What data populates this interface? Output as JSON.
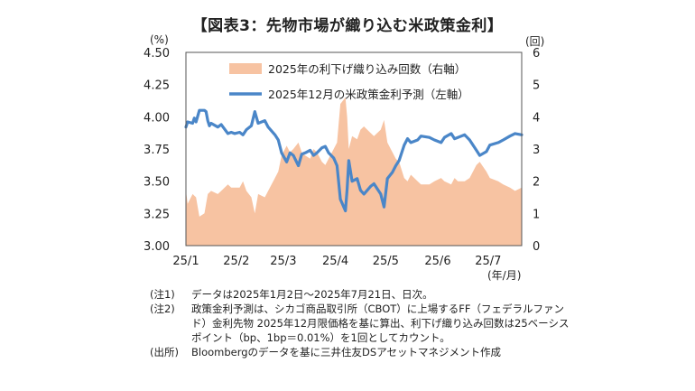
{
  "title": "【図表3：先物市場が織り込む米政策金利】",
  "left_unit": "(%)",
  "right_unit": "(回)",
  "x_unit": "(年/月)",
  "notes": [
    {
      "tag": "(注1)",
      "text": "データは2025年1月2日～2025年7月21日、日次。"
    },
    {
      "tag": "(注2)",
      "text": "政策金利予測は、シカゴ商品取引所（CBOT）に上場するFF（フェデラルファンド）金利先物 2025年12月限価格を基に算出、利下げ織り込み回数は25ベーシスポイント（bp、1bp＝0.01%）を1回としてカウント。"
    },
    {
      "tag": "(出所)",
      "text": "Bloombergのデータを基に三井住友DSアセットマネジメント作成"
    }
  ],
  "chart_data": {
    "type": "line",
    "title": "図表3：先物市場が織り込む米政策金利",
    "x_ticks": [
      "25/1",
      "25/2",
      "25/3",
      "25/4",
      "25/5",
      "25/6",
      "25/7"
    ],
    "x_range": [
      "2025-01-02",
      "2025-07-21"
    ],
    "y_left": {
      "label": "(%)",
      "min": 3.0,
      "max": 4.5,
      "ticks": [
        "3.00",
        "3.25",
        "3.50",
        "3.75",
        "4.00",
        "4.25",
        "4.50"
      ]
    },
    "y_right": {
      "label": "(回)",
      "min": 0,
      "max": 6,
      "ticks": [
        "0",
        "1",
        "2",
        "3",
        "4",
        "5",
        "6"
      ]
    },
    "grid": false,
    "legend_position": "top-center",
    "series": [
      {
        "name": "2025年の利下げ織り込み回数（右軸）",
        "type": "area",
        "axis": "right",
        "color": "#f7c3a2",
        "points": [
          [
            "2025-01-02",
            1.7
          ],
          [
            "2025-01-03",
            1.3
          ],
          [
            "2025-01-06",
            1.6
          ],
          [
            "2025-01-08",
            1.5
          ],
          [
            "2025-01-10",
            0.9
          ],
          [
            "2025-01-13",
            1.0
          ],
          [
            "2025-01-15",
            1.6
          ],
          [
            "2025-01-17",
            1.7
          ],
          [
            "2025-01-21",
            1.6
          ],
          [
            "2025-01-23",
            1.7
          ],
          [
            "2025-01-27",
            1.9
          ],
          [
            "2025-01-29",
            1.8
          ],
          [
            "2025-01-31",
            1.8
          ],
          [
            "2025-02-03",
            1.8
          ],
          [
            "2025-02-05",
            2.0
          ],
          [
            "2025-02-07",
            1.7
          ],
          [
            "2025-02-10",
            1.5
          ],
          [
            "2025-02-12",
            1.0
          ],
          [
            "2025-02-14",
            1.6
          ],
          [
            "2025-02-18",
            1.5
          ],
          [
            "2025-02-20",
            1.7
          ],
          [
            "2025-02-24",
            2.1
          ],
          [
            "2025-02-26",
            2.3
          ],
          [
            "2025-02-28",
            2.8
          ],
          [
            "2025-03-03",
            3.1
          ],
          [
            "2025-03-05",
            2.9
          ],
          [
            "2025-03-07",
            3.0
          ],
          [
            "2025-03-10",
            3.2
          ],
          [
            "2025-03-12",
            2.9
          ],
          [
            "2025-03-14",
            2.8
          ],
          [
            "2025-03-17",
            2.7
          ],
          [
            "2025-03-19",
            3.0
          ],
          [
            "2025-03-21",
            2.9
          ],
          [
            "2025-03-24",
            2.6
          ],
          [
            "2025-03-26",
            2.5
          ],
          [
            "2025-03-28",
            2.7
          ],
          [
            "2025-03-31",
            3.0
          ],
          [
            "2025-04-02",
            3.2
          ],
          [
            "2025-04-04",
            4.4
          ],
          [
            "2025-04-07",
            4.6
          ],
          [
            "2025-04-08",
            4.0
          ],
          [
            "2025-04-09",
            3.0
          ],
          [
            "2025-04-11",
            3.4
          ],
          [
            "2025-04-14",
            3.3
          ],
          [
            "2025-04-16",
            3.6
          ],
          [
            "2025-04-18",
            3.7
          ],
          [
            "2025-04-22",
            3.5
          ],
          [
            "2025-04-24",
            3.4
          ],
          [
            "2025-04-28",
            3.6
          ],
          [
            "2025-04-30",
            3.9
          ],
          [
            "2025-05-02",
            3.2
          ],
          [
            "2025-05-05",
            2.9
          ],
          [
            "2025-05-07",
            2.7
          ],
          [
            "2025-05-09",
            2.6
          ],
          [
            "2025-05-12",
            2.1
          ],
          [
            "2025-05-14",
            2.0
          ],
          [
            "2025-05-16",
            2.2
          ],
          [
            "2025-05-20",
            2.0
          ],
          [
            "2025-05-22",
            1.9
          ],
          [
            "2025-05-27",
            1.9
          ],
          [
            "2025-05-30",
            2.0
          ],
          [
            "2025-06-03",
            2.1
          ],
          [
            "2025-06-05",
            2.0
          ],
          [
            "2025-06-09",
            1.9
          ],
          [
            "2025-06-11",
            2.1
          ],
          [
            "2025-06-13",
            2.0
          ],
          [
            "2025-06-17",
            2.0
          ],
          [
            "2025-06-20",
            2.1
          ],
          [
            "2025-06-24",
            2.5
          ],
          [
            "2025-06-26",
            2.6
          ],
          [
            "2025-06-30",
            2.3
          ],
          [
            "2025-07-02",
            2.1
          ],
          [
            "2025-07-07",
            2.0
          ],
          [
            "2025-07-10",
            1.9
          ],
          [
            "2025-07-14",
            1.8
          ],
          [
            "2025-07-17",
            1.7
          ],
          [
            "2025-07-21",
            1.8
          ]
        ]
      },
      {
        "name": "2025年12月の米政策金利予測（左軸）",
        "type": "line",
        "axis": "left",
        "color": "#4a86c8",
        "points": [
          [
            "2025-01-02",
            3.92
          ],
          [
            "2025-01-03",
            3.96
          ],
          [
            "2025-01-06",
            3.95
          ],
          [
            "2025-01-07",
            3.99
          ],
          [
            "2025-01-08",
            3.96
          ],
          [
            "2025-01-10",
            4.05
          ],
          [
            "2025-01-13",
            4.05
          ],
          [
            "2025-01-14",
            4.04
          ],
          [
            "2025-01-15",
            3.97
          ],
          [
            "2025-01-16",
            3.93
          ],
          [
            "2025-01-17",
            3.95
          ],
          [
            "2025-01-21",
            3.92
          ],
          [
            "2025-01-23",
            3.94
          ],
          [
            "2025-01-27",
            3.87
          ],
          [
            "2025-01-29",
            3.88
          ],
          [
            "2025-01-31",
            3.87
          ],
          [
            "2025-02-03",
            3.88
          ],
          [
            "2025-02-05",
            3.86
          ],
          [
            "2025-02-07",
            3.9
          ],
          [
            "2025-02-10",
            3.93
          ],
          [
            "2025-02-12",
            4.04
          ],
          [
            "2025-02-14",
            3.95
          ],
          [
            "2025-02-18",
            3.97
          ],
          [
            "2025-02-20",
            3.92
          ],
          [
            "2025-02-24",
            3.86
          ],
          [
            "2025-02-26",
            3.82
          ],
          [
            "2025-02-28",
            3.72
          ],
          [
            "2025-03-03",
            3.65
          ],
          [
            "2025-03-05",
            3.72
          ],
          [
            "2025-03-07",
            3.7
          ],
          [
            "2025-03-10",
            3.62
          ],
          [
            "2025-03-12",
            3.71
          ],
          [
            "2025-03-14",
            3.72
          ],
          [
            "2025-03-17",
            3.74
          ],
          [
            "2025-03-19",
            3.7
          ],
          [
            "2025-03-21",
            3.72
          ],
          [
            "2025-03-24",
            3.76
          ],
          [
            "2025-03-26",
            3.77
          ],
          [
            "2025-03-28",
            3.72
          ],
          [
            "2025-03-31",
            3.68
          ],
          [
            "2025-04-02",
            3.62
          ],
          [
            "2025-04-04",
            3.36
          ],
          [
            "2025-04-07",
            3.27
          ],
          [
            "2025-04-08",
            3.44
          ],
          [
            "2025-04-09",
            3.66
          ],
          [
            "2025-04-11",
            3.5
          ],
          [
            "2025-04-14",
            3.52
          ],
          [
            "2025-04-16",
            3.43
          ],
          [
            "2025-04-18",
            3.4
          ],
          [
            "2025-04-22",
            3.46
          ],
          [
            "2025-04-24",
            3.48
          ],
          [
            "2025-04-28",
            3.4
          ],
          [
            "2025-04-30",
            3.3
          ],
          [
            "2025-05-02",
            3.52
          ],
          [
            "2025-05-05",
            3.57
          ],
          [
            "2025-05-07",
            3.62
          ],
          [
            "2025-05-09",
            3.66
          ],
          [
            "2025-05-12",
            3.78
          ],
          [
            "2025-05-14",
            3.83
          ],
          [
            "2025-05-16",
            3.8
          ],
          [
            "2025-05-20",
            3.82
          ],
          [
            "2025-05-22",
            3.85
          ],
          [
            "2025-05-27",
            3.84
          ],
          [
            "2025-05-30",
            3.82
          ],
          [
            "2025-06-03",
            3.8
          ],
          [
            "2025-06-05",
            3.84
          ],
          [
            "2025-06-09",
            3.87
          ],
          [
            "2025-06-11",
            3.83
          ],
          [
            "2025-06-13",
            3.84
          ],
          [
            "2025-06-17",
            3.86
          ],
          [
            "2025-06-20",
            3.82
          ],
          [
            "2025-06-24",
            3.74
          ],
          [
            "2025-06-26",
            3.7
          ],
          [
            "2025-06-30",
            3.73
          ],
          [
            "2025-07-02",
            3.78
          ],
          [
            "2025-07-07",
            3.8
          ],
          [
            "2025-07-10",
            3.82
          ],
          [
            "2025-07-14",
            3.85
          ],
          [
            "2025-07-17",
            3.87
          ],
          [
            "2025-07-21",
            3.86
          ]
        ]
      }
    ]
  }
}
